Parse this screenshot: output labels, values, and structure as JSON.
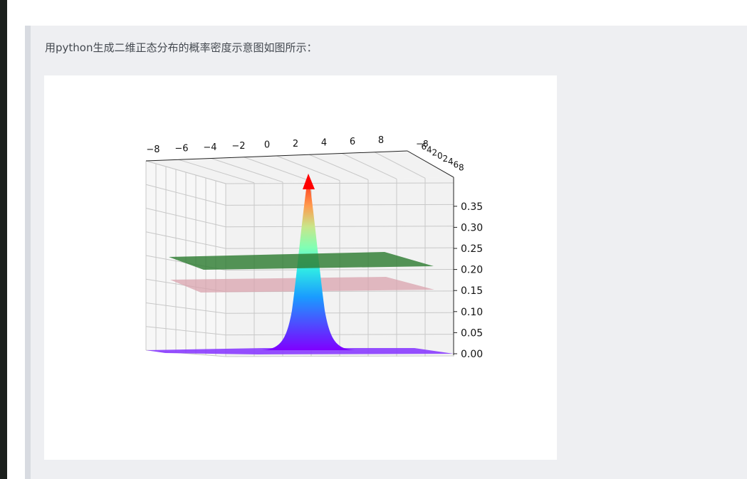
{
  "article": {
    "quote_text": "用python生成二维正态分布的概率密度示意图如图所示："
  },
  "figure": {
    "colors": {
      "green_plane": "#2e7d32",
      "pink_plane": "#d9a3ad",
      "grid": "#c8c8c8",
      "pane": "#f2f2f2",
      "base_surface": "#8a3cff"
    }
  },
  "chart_data": {
    "type": "surface3d",
    "title": "",
    "x_ticks": [
      "−8",
      "−6",
      "−4",
      "−2",
      "0",
      "2",
      "4",
      "6",
      "8"
    ],
    "y_ticks": [
      "−8",
      "6",
      "4",
      "2",
      "0",
      "2",
      "4",
      "6",
      "8"
    ],
    "z_ticks": [
      "0.00",
      "0.05",
      "0.10",
      "0.15",
      "0.20",
      "0.25",
      "0.30",
      "0.35"
    ],
    "xlim": [
      -8,
      8
    ],
    "ylim": [
      -8,
      8
    ],
    "zlim": [
      0,
      0.4
    ],
    "surface_peak": 0.4,
    "planes_z": [
      0.22,
      0.16
    ],
    "colormap": "rainbow"
  }
}
